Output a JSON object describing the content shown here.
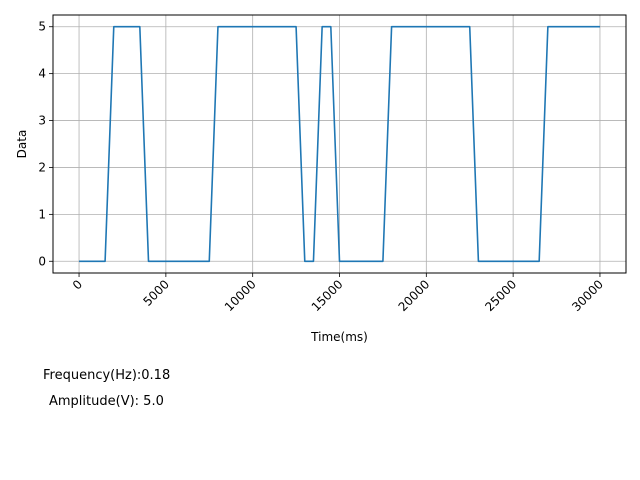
{
  "chart_data": {
    "type": "line",
    "title": "",
    "xlabel": "Time(ms)",
    "ylabel": "Data",
    "xlim": [
      -1500,
      31500
    ],
    "ylim": [
      -0.25,
      5.25
    ],
    "xticks": [
      0,
      5000,
      10000,
      15000,
      20000,
      25000,
      30000
    ],
    "yticks": [
      0,
      1,
      2,
      3,
      4,
      5
    ],
    "grid": true,
    "legend": "none",
    "series": [
      {
        "color": "#1f77b4",
        "x": [
          0,
          1500,
          2000,
          3500,
          4000,
          7500,
          8000,
          12500,
          13000,
          13500,
          14000,
          14500,
          15000,
          17500,
          18000,
          22500,
          23000,
          26500,
          27000,
          30000
        ],
        "y": [
          0,
          0,
          5,
          5,
          0,
          0,
          5,
          5,
          0,
          0,
          5,
          5,
          0,
          0,
          5,
          5,
          0,
          0,
          5,
          5
        ]
      }
    ]
  },
  "info": {
    "frequency": "Frequency(Hz):0.18",
    "amplitude": "Amplitude(V): 5.0"
  }
}
